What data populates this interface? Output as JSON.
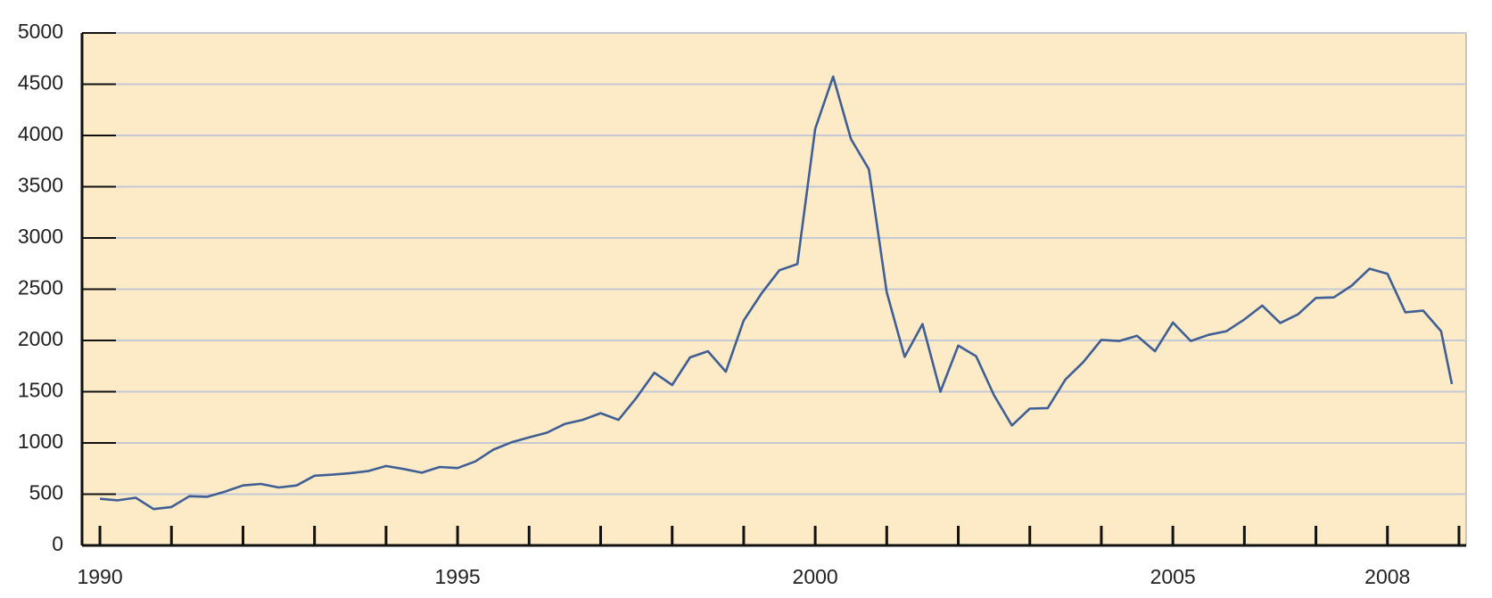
{
  "chart_data": {
    "type": "line",
    "x": [
      1990,
      1990.25,
      1990.5,
      1990.75,
      1991,
      1991.25,
      1991.5,
      1991.75,
      1992,
      1992.25,
      1992.5,
      1992.75,
      1993,
      1993.25,
      1993.5,
      1993.75,
      1994,
      1994.25,
      1994.5,
      1994.75,
      1995,
      1995.25,
      1995.5,
      1995.75,
      1996,
      1996.25,
      1996.5,
      1996.75,
      1997,
      1997.25,
      1997.5,
      1997.75,
      1998,
      1998.25,
      1998.5,
      1998.75,
      1999,
      1999.25,
      1999.5,
      1999.75,
      2000,
      2000.25,
      2000.5,
      2000.75,
      2001,
      2001.25,
      2001.5,
      2001.75,
      2002,
      2002.25,
      2002.5,
      2002.75,
      2003,
      2003.25,
      2003.5,
      2003.75,
      2004,
      2004.25,
      2004.5,
      2004.75,
      2005,
      2005.25,
      2005.5,
      2005.75,
      2006,
      2006.25,
      2006.5,
      2006.75,
      2007,
      2007.25,
      2007.5,
      2007.75,
      2008,
      2008.25,
      2008.5,
      2008.75,
      2008.9
    ],
    "series": [
      {
        "color": "#3f5f95",
        "values": [
          455,
          440,
          465,
          355,
          375,
          480,
          475,
          525,
          585,
          600,
          565,
          585,
          680,
          690,
          705,
          725,
          775,
          745,
          710,
          765,
          755,
          820,
          935,
          1005,
          1055,
          1100,
          1185,
          1225,
          1290,
          1225,
          1440,
          1685,
          1565,
          1835,
          1895,
          1695,
          2195,
          2460,
          2685,
          2745,
          4065,
          4575,
          3965,
          3670,
          2470,
          1840,
          2160,
          1500,
          1950,
          1845,
          1465,
          1170,
          1335,
          1340,
          1620,
          1790,
          2005,
          1995,
          2045,
          1895,
          2175,
          1995,
          2055,
          2090,
          2205,
          2340,
          2170,
          2255,
          2415,
          2420,
          2535,
          2700,
          2650,
          2275,
          2290,
          2090,
          1575
        ]
      }
    ],
    "xlim": [
      1989.75,
      2009.1
    ],
    "xticks": [
      1990,
      1995,
      2000,
      2005,
      2008
    ],
    "xminorticks": [
      1991,
      1992,
      1993,
      1994,
      1996,
      1997,
      1998,
      1999,
      2001,
      2002,
      2003,
      2004,
      2006,
      2007,
      2009
    ],
    "ylim": [
      0,
      5000
    ],
    "yticks": [
      0,
      500,
      1000,
      1500,
      2000,
      2500,
      3000,
      3500,
      4000,
      4500,
      5000
    ],
    "grid": true,
    "background": "#fcebc6",
    "grid_color": "#c5c9d6"
  }
}
